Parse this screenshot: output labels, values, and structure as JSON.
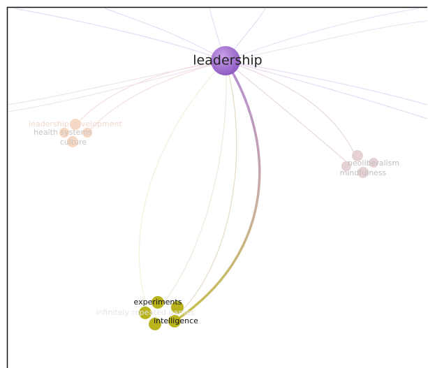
{
  "nodes": [
    {
      "label": "leadership"
    },
    {
      "label": "leadership development"
    },
    {
      "label": "health systems"
    },
    {
      "label": "culture"
    },
    {
      "label": "neoliberalism"
    },
    {
      "label": "mindfulness"
    },
    {
      "label": "experiments"
    },
    {
      "label": "infinitely repeated games"
    },
    {
      "label": "intelligence"
    }
  ]
}
